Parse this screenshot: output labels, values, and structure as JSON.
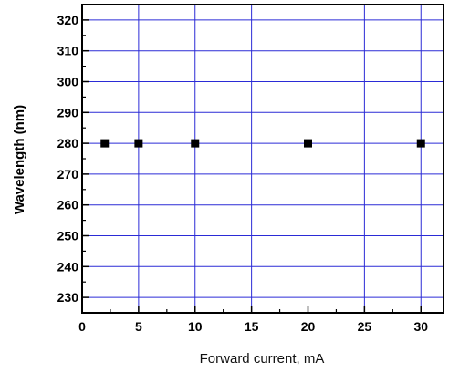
{
  "chart_data": {
    "type": "scatter",
    "xlabel": "Forward current, mA",
    "ylabel": "Wavelength (nm)",
    "xlim": [
      0,
      32
    ],
    "ylim": [
      225,
      325
    ],
    "x_ticks": [
      0,
      5,
      10,
      15,
      20,
      25,
      30
    ],
    "y_ticks": [
      230,
      240,
      250,
      260,
      270,
      280,
      290,
      300,
      310,
      320
    ],
    "grid": true,
    "grid_color": "#2b2bd6",
    "marker": "square",
    "marker_color": "#000000",
    "series": [
      {
        "x": [
          2,
          5,
          10,
          20,
          30
        ],
        "y": [
          280,
          280,
          280,
          280,
          280
        ]
      }
    ]
  }
}
